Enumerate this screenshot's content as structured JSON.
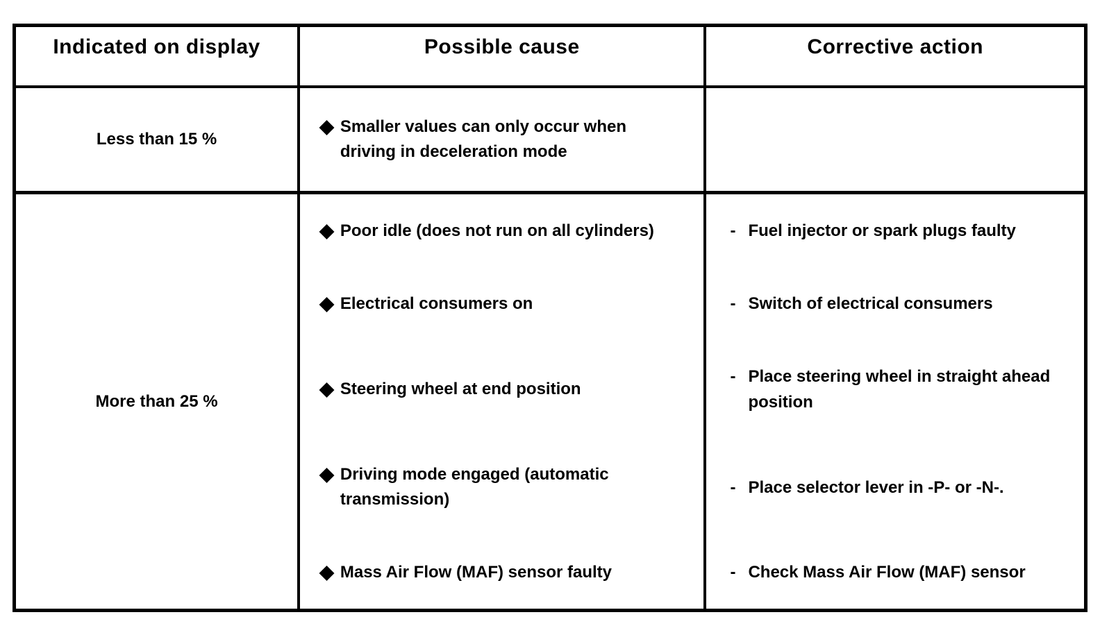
{
  "table": {
    "bullet": "◆",
    "dash": "-",
    "headers": [
      "Indicated on display",
      "Possible cause",
      "Corrective action"
    ],
    "rows": [
      {
        "display": "Less than 15 %",
        "pairs": [
          {
            "cause": "Smaller values can only occur when driving in deceleration mode",
            "action": ""
          }
        ]
      },
      {
        "display": "More than 25 %",
        "pairs": [
          {
            "cause": "Poor idle (does not run on all cylinders)",
            "action": "Fuel injector or spark plugs faulty"
          },
          {
            "cause": "Electrical consumers on",
            "action": "Switch of electrical consumers"
          },
          {
            "cause": "Steering wheel at end position",
            "action": "Place steering wheel in straight ahead position"
          },
          {
            "cause": "Driving mode engaged (automatic transmission)",
            "action": "Place selector lever in -P- or -N-."
          },
          {
            "cause": "Mass Air Flow (MAF) sensor faulty",
            "action": "Check Mass Air Flow (MAF) sensor"
          }
        ]
      }
    ]
  }
}
